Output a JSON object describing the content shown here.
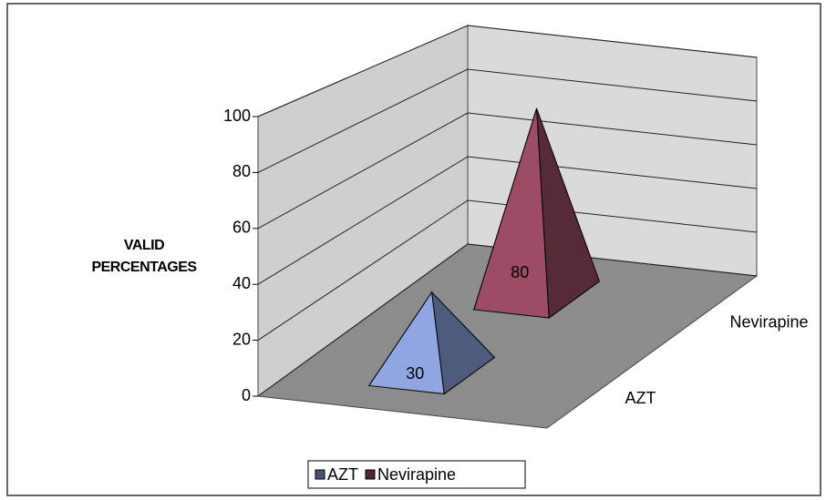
{
  "chart_data": {
    "type": "pyramid",
    "y_axis_label": "VALID PERCENTAGES",
    "series": [
      {
        "name": "AZT",
        "color": "#8fa6e3",
        "values": [
          30
        ]
      },
      {
        "name": "Nevirapine",
        "color": "#9c4d63",
        "values": [
          80
        ]
      }
    ],
    "ylim": [
      0,
      100
    ],
    "yticks": [
      0,
      20,
      40,
      60,
      80,
      100
    ],
    "grid": true,
    "legend": "bottom"
  }
}
